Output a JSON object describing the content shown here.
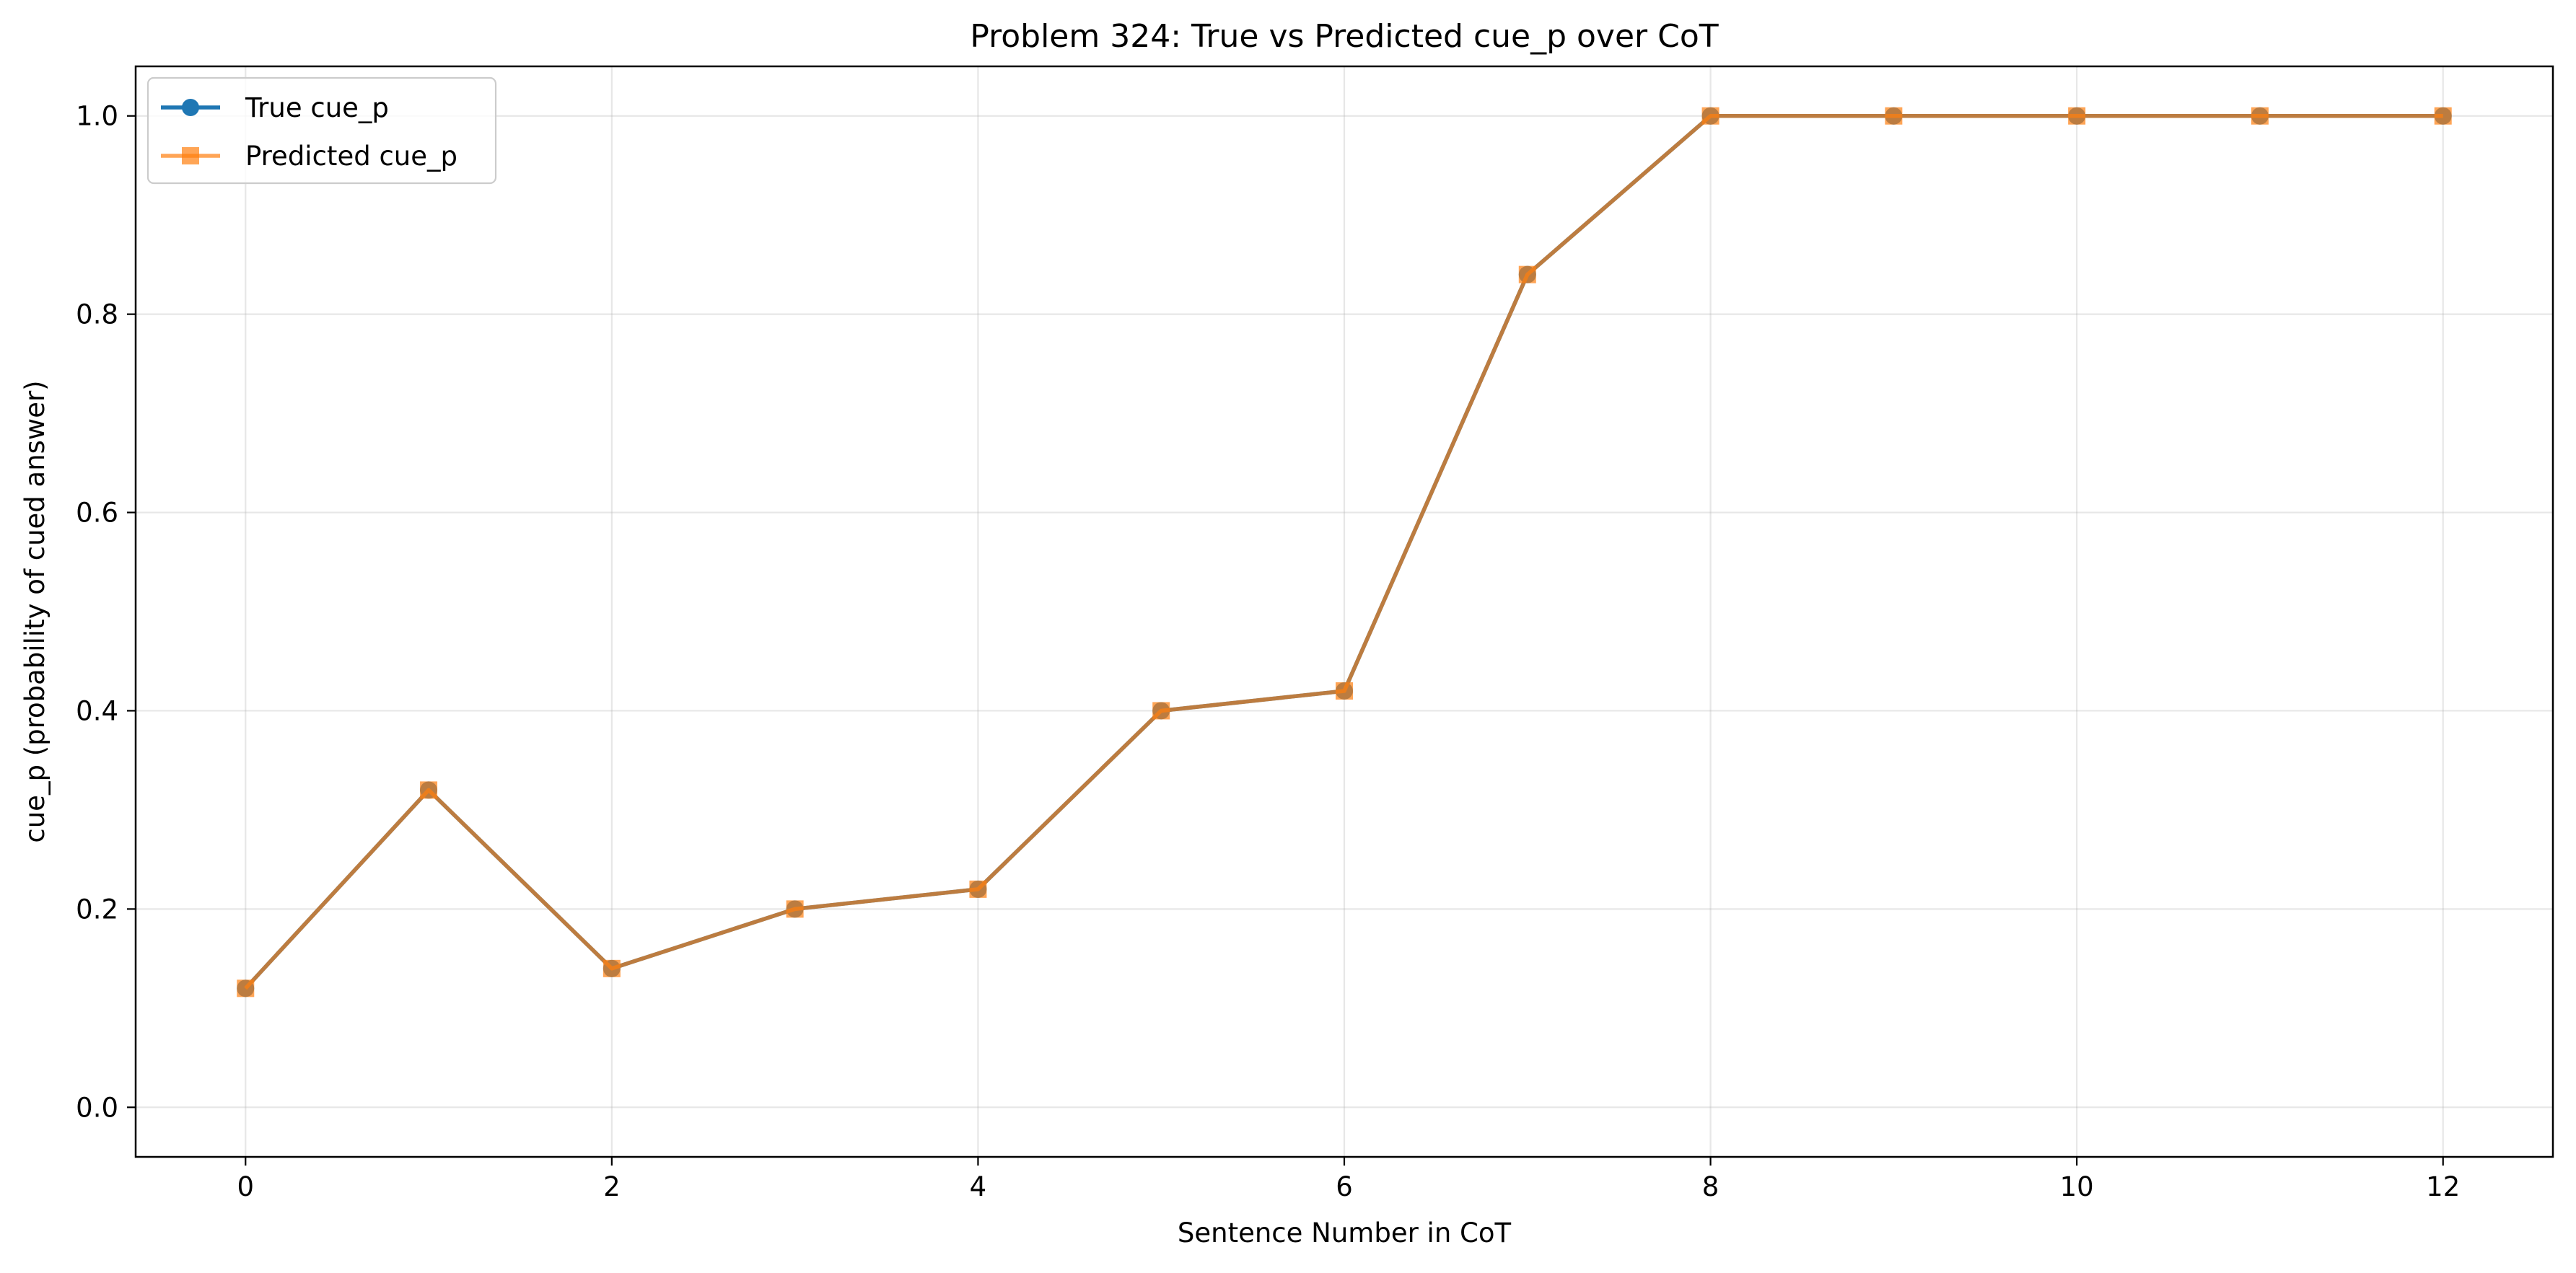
{
  "chart_data": {
    "type": "line",
    "title": "Problem 324: True vs Predicted cue_p over CoT",
    "xlabel": "Sentence Number in CoT",
    "ylabel": "cue_p (probability of cued answer)",
    "xlim": [
      -0.6,
      12.6
    ],
    "ylim": [
      -0.05,
      1.05
    ],
    "xticks": [
      0,
      2,
      4,
      6,
      8,
      10,
      12
    ],
    "xtick_labels": [
      "0",
      "2",
      "4",
      "6",
      "8",
      "10",
      "12"
    ],
    "yticks": [
      0.0,
      0.2,
      0.4,
      0.6,
      0.8,
      1.0
    ],
    "ytick_labels": [
      "0.0",
      "0.2",
      "0.4",
      "0.6",
      "0.8",
      "1.0"
    ],
    "grid": true,
    "legend_position": "top-left",
    "x": [
      0,
      1,
      2,
      3,
      4,
      5,
      6,
      7,
      8,
      9,
      10,
      11,
      12
    ],
    "series": [
      {
        "name": "True cue_p",
        "color": "#1f77b4",
        "marker": "circle",
        "values": [
          0.12,
          0.32,
          0.14,
          0.2,
          0.22,
          0.4,
          0.42,
          0.84,
          1.0,
          1.0,
          1.0,
          1.0,
          1.0
        ]
      },
      {
        "name": "Predicted cue_p",
        "color": "#ff7f0e",
        "marker": "square",
        "values": [
          0.12,
          0.32,
          0.14,
          0.2,
          0.22,
          0.4,
          0.42,
          0.84,
          1.0,
          1.0,
          1.0,
          1.0,
          1.0
        ]
      }
    ]
  }
}
